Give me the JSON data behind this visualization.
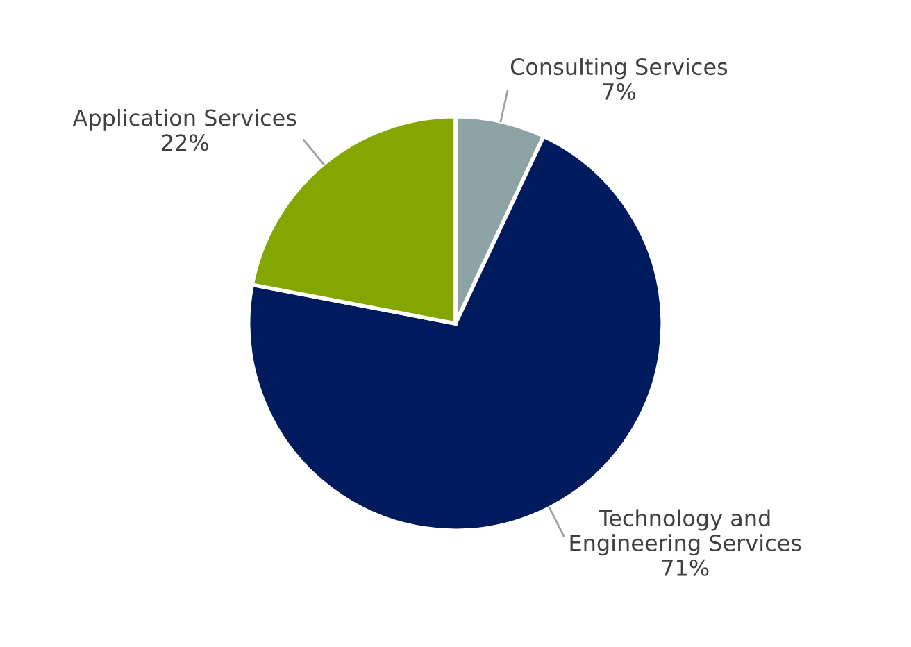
{
  "chart_data": {
    "type": "pie",
    "categories": [
      "Consulting Services",
      "Technology and\nEngineering Services",
      "Application Services"
    ],
    "values": [
      7,
      71,
      22
    ],
    "value_labels": [
      "7%",
      "71%",
      "22%"
    ],
    "colors": [
      "#8ea3a6",
      "#001a5e",
      "#84a600"
    ]
  }
}
